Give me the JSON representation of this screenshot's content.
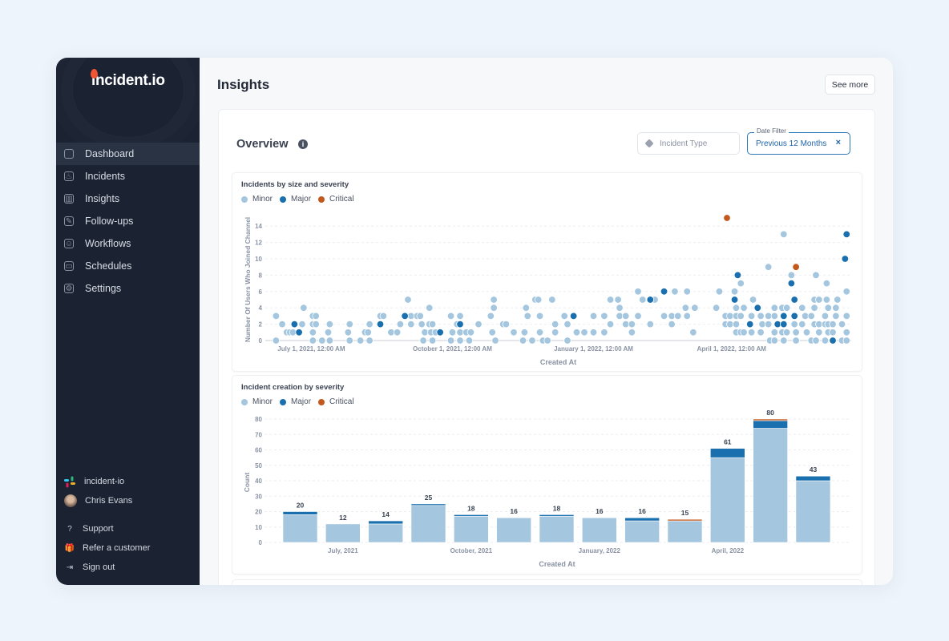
{
  "sidebar": {
    "logo": "incident.io",
    "items": [
      {
        "label": "Dashboard",
        "icon": "dashboard-icon",
        "glyph": "",
        "active": true
      },
      {
        "label": "Incidents",
        "icon": "flame-icon",
        "glyph": "♨"
      },
      {
        "label": "Insights",
        "icon": "chart-icon",
        "glyph": "▥"
      },
      {
        "label": "Follow-ups",
        "icon": "pencil-icon",
        "glyph": "✎"
      },
      {
        "label": "Workflows",
        "icon": "robot-icon",
        "glyph": "☺"
      },
      {
        "label": "Schedules",
        "icon": "calendar-icon",
        "glyph": "▭"
      },
      {
        "label": "Settings",
        "icon": "gear-icon",
        "glyph": "⚙"
      }
    ],
    "workspace": "incident-io",
    "user": "Chris Evans",
    "footer": [
      {
        "label": "Support",
        "icon": "help-circle-icon",
        "glyph": "?"
      },
      {
        "label": "Refer a customer",
        "icon": "gift-icon",
        "glyph": "🎁"
      },
      {
        "label": "Sign out",
        "icon": "sign-out-icon",
        "glyph": "⇥"
      }
    ]
  },
  "header": {
    "title": "Insights",
    "see_more": "See more"
  },
  "overview": {
    "title": "Overview",
    "info_icon": "i",
    "incident_type_placeholder": "Incident Type",
    "date_filter_label": "Date Filter",
    "date_filter_value": "Previous 12 Months",
    "clear": "×"
  },
  "colors": {
    "Minor": "#a4c6df",
    "Major": "#1a6fae",
    "Critical": "#c4581c"
  },
  "chart_data": [
    {
      "type": "scatter",
      "title": "Incidents by size and severity",
      "xlabel": "Created At",
      "ylabel": "Number Of Users Who Joined Channel",
      "ylim": [
        0,
        14
      ],
      "yticks": [
        0,
        2,
        4,
        6,
        8,
        10,
        12,
        14
      ],
      "xlim": [
        "2021-06-01",
        "2022-06-18"
      ],
      "xticks": [
        {
          "date": "2021-07-01",
          "label": "July 1, 2021, 12:00 AM"
        },
        {
          "date": "2021-10-01",
          "label": "October 1, 2021, 12:00 AM"
        },
        {
          "date": "2022-01-01",
          "label": "January 1, 2022, 12:00 AM"
        },
        {
          "date": "2022-04-01",
          "label": "April 1, 2022, 12:00 AM"
        }
      ],
      "grid": true,
      "legend": "top-left",
      "series": [
        {
          "name": "Minor",
          "points": [
            [
              "2021-06-08",
              0
            ],
            [
              "2021-06-08",
              3
            ],
            [
              "2021-06-12",
              2
            ],
            [
              "2021-06-15",
              1
            ],
            [
              "2021-06-17",
              1
            ],
            [
              "2021-06-19",
              1
            ],
            [
              "2021-06-25",
              2
            ],
            [
              "2021-06-26",
              4
            ],
            [
              "2021-07-02",
              2
            ],
            [
              "2021-07-02",
              3
            ],
            [
              "2021-07-02",
              1
            ],
            [
              "2021-07-02",
              0
            ],
            [
              "2021-07-04",
              2
            ],
            [
              "2021-07-04",
              3
            ],
            [
              "2021-07-08",
              0
            ],
            [
              "2021-07-12",
              1
            ],
            [
              "2021-07-13",
              2
            ],
            [
              "2021-07-13",
              0
            ],
            [
              "2021-07-25",
              1
            ],
            [
              "2021-07-26",
              2
            ],
            [
              "2021-07-26",
              0
            ],
            [
              "2021-08-02",
              0
            ],
            [
              "2021-08-05",
              1
            ],
            [
              "2021-08-07",
              1
            ],
            [
              "2021-08-08",
              2
            ],
            [
              "2021-08-08",
              0
            ],
            [
              "2021-08-15",
              3
            ],
            [
              "2021-08-17",
              3
            ],
            [
              "2021-08-22",
              1
            ],
            [
              "2021-08-26",
              1
            ],
            [
              "2021-08-28",
              2
            ],
            [
              "2021-09-02",
              5
            ],
            [
              "2021-09-04",
              3
            ],
            [
              "2021-09-04",
              2
            ],
            [
              "2021-09-08",
              3
            ],
            [
              "2021-09-10",
              3
            ],
            [
              "2021-09-11",
              2
            ],
            [
              "2021-09-12",
              0
            ],
            [
              "2021-09-13",
              1
            ],
            [
              "2021-09-16",
              4
            ],
            [
              "2021-09-16",
              2
            ],
            [
              "2021-09-17",
              1
            ],
            [
              "2021-09-18",
              2
            ],
            [
              "2021-09-18",
              0
            ],
            [
              "2021-09-20",
              1
            ],
            [
              "2021-09-30",
              0
            ],
            [
              "2021-09-30",
              3
            ],
            [
              "2021-10-01",
              1
            ],
            [
              "2021-10-04",
              2
            ],
            [
              "2021-10-06",
              0
            ],
            [
              "2021-10-06",
              1
            ],
            [
              "2021-10-06",
              3
            ],
            [
              "2021-10-10",
              1
            ],
            [
              "2021-10-12",
              0
            ],
            [
              "2021-10-13",
              1
            ],
            [
              "2021-10-18",
              2
            ],
            [
              "2021-10-26",
              3
            ],
            [
              "2021-10-27",
              1
            ],
            [
              "2021-10-28",
              4
            ],
            [
              "2021-10-28",
              5
            ],
            [
              "2021-10-29",
              0
            ],
            [
              "2021-11-03",
              2
            ],
            [
              "2021-11-05",
              2
            ],
            [
              "2021-11-10",
              1
            ],
            [
              "2021-11-16",
              0
            ],
            [
              "2021-11-17",
              1
            ],
            [
              "2021-11-18",
              4
            ],
            [
              "2021-11-19",
              3
            ],
            [
              "2021-11-22",
              0
            ],
            [
              "2021-11-24",
              5
            ],
            [
              "2021-11-26",
              5
            ],
            [
              "2021-11-27",
              3
            ],
            [
              "2021-11-27",
              1
            ],
            [
              "2021-11-29",
              0
            ],
            [
              "2021-12-02",
              0
            ],
            [
              "2021-12-05",
              5
            ],
            [
              "2021-12-07",
              2
            ],
            [
              "2021-12-07",
              1
            ],
            [
              "2021-12-13",
              3
            ],
            [
              "2021-12-15",
              2
            ],
            [
              "2021-12-15",
              0
            ],
            [
              "2021-12-21",
              1
            ],
            [
              "2021-12-26",
              1
            ],
            [
              "2022-01-01",
              1
            ],
            [
              "2022-01-01",
              3
            ],
            [
              "2022-01-08",
              3
            ],
            [
              "2022-01-08",
              1
            ],
            [
              "2022-01-12",
              2
            ],
            [
              "2022-01-12",
              5
            ],
            [
              "2022-01-17",
              5
            ],
            [
              "2022-01-18",
              4
            ],
            [
              "2022-01-18",
              3
            ],
            [
              "2022-01-22",
              3
            ],
            [
              "2022-01-22",
              2
            ],
            [
              "2022-01-26",
              1
            ],
            [
              "2022-01-26",
              2
            ],
            [
              "2022-01-30",
              6
            ],
            [
              "2022-01-30",
              3
            ],
            [
              "2022-02-02",
              5
            ],
            [
              "2022-02-07",
              2
            ],
            [
              "2022-02-10",
              5
            ],
            [
              "2022-02-16",
              3
            ],
            [
              "2022-02-21",
              3
            ],
            [
              "2022-02-21",
              2
            ],
            [
              "2022-02-23",
              6
            ],
            [
              "2022-02-25",
              3
            ],
            [
              "2022-03-02",
              4
            ],
            [
              "2022-03-03",
              6
            ],
            [
              "2022-03-03",
              3
            ],
            [
              "2022-03-07",
              1
            ],
            [
              "2022-03-08",
              4
            ],
            [
              "2022-03-22",
              4
            ],
            [
              "2022-03-24",
              6
            ],
            [
              "2022-03-28",
              3
            ],
            [
              "2022-03-28",
              2
            ],
            [
              "2022-03-31",
              3
            ],
            [
              "2022-03-31",
              2
            ],
            [
              "2022-04-03",
              6
            ],
            [
              "2022-04-04",
              4
            ],
            [
              "2022-04-04",
              3
            ],
            [
              "2022-04-04",
              2
            ],
            [
              "2022-04-04",
              1
            ],
            [
              "2022-04-07",
              7
            ],
            [
              "2022-04-07",
              3
            ],
            [
              "2022-04-07",
              1
            ],
            [
              "2022-04-09",
              4
            ],
            [
              "2022-04-09",
              1
            ],
            [
              "2022-04-14",
              3
            ],
            [
              "2022-04-14",
              1
            ],
            [
              "2022-04-15",
              5
            ],
            [
              "2022-04-20",
              3
            ],
            [
              "2022-04-20",
              1
            ],
            [
              "2022-04-21",
              2
            ],
            [
              "2022-04-25",
              9
            ],
            [
              "2022-04-25",
              3
            ],
            [
              "2022-04-25",
              2
            ],
            [
              "2022-04-26",
              0
            ],
            [
              "2022-04-29",
              4
            ],
            [
              "2022-04-29",
              3
            ],
            [
              "2022-04-29",
              1
            ],
            [
              "2022-04-29",
              0
            ],
            [
              "2022-05-04",
              4
            ],
            [
              "2022-05-04",
              1
            ],
            [
              "2022-05-05",
              13
            ],
            [
              "2022-05-05",
              0
            ],
            [
              "2022-05-07",
              4
            ],
            [
              "2022-05-07",
              1
            ],
            [
              "2022-05-10",
              8
            ],
            [
              "2022-05-12",
              2
            ],
            [
              "2022-05-13",
              1
            ],
            [
              "2022-05-13",
              0
            ],
            [
              "2022-05-17",
              4
            ],
            [
              "2022-05-17",
              2
            ],
            [
              "2022-05-19",
              3
            ],
            [
              "2022-05-20",
              1
            ],
            [
              "2022-05-23",
              3
            ],
            [
              "2022-05-23",
              0
            ],
            [
              "2022-05-25",
              5
            ],
            [
              "2022-05-25",
              4
            ],
            [
              "2022-05-25",
              2
            ],
            [
              "2022-05-26",
              8
            ],
            [
              "2022-05-26",
              0
            ],
            [
              "2022-05-28",
              5
            ],
            [
              "2022-05-28",
              2
            ],
            [
              "2022-05-28",
              1
            ],
            [
              "2022-06-01",
              3
            ],
            [
              "2022-06-01",
              2
            ],
            [
              "2022-06-01",
              0
            ],
            [
              "2022-06-02",
              7
            ],
            [
              "2022-06-02",
              5
            ],
            [
              "2022-06-03",
              4
            ],
            [
              "2022-06-03",
              2
            ],
            [
              "2022-06-03",
              1
            ],
            [
              "2022-06-06",
              2
            ],
            [
              "2022-06-06",
              1
            ],
            [
              "2022-06-08",
              3
            ],
            [
              "2022-06-08",
              4
            ],
            [
              "2022-06-09",
              5
            ],
            [
              "2022-06-12",
              0
            ],
            [
              "2022-06-12",
              2
            ],
            [
              "2022-06-15",
              6
            ],
            [
              "2022-06-15",
              3
            ],
            [
              "2022-06-15",
              1
            ],
            [
              "2022-06-15",
              0
            ]
          ]
        },
        {
          "name": "Major",
          "points": [
            [
              "2021-06-20",
              2
            ],
            [
              "2021-06-23",
              1
            ],
            [
              "2021-08-15",
              2
            ],
            [
              "2021-08-31",
              3
            ],
            [
              "2021-09-23",
              1
            ],
            [
              "2021-10-06",
              2
            ],
            [
              "2021-12-19",
              3
            ],
            [
              "2022-02-07",
              5
            ],
            [
              "2022-02-16",
              6
            ],
            [
              "2022-04-03",
              5
            ],
            [
              "2022-04-05",
              8
            ],
            [
              "2022-04-13",
              2
            ],
            [
              "2022-04-18",
              4
            ],
            [
              "2022-05-01",
              2
            ],
            [
              "2022-05-05",
              3
            ],
            [
              "2022-05-05",
              2
            ],
            [
              "2022-05-10",
              7
            ],
            [
              "2022-05-12",
              5
            ],
            [
              "2022-05-12",
              3
            ],
            [
              "2022-06-06",
              0
            ],
            [
              "2022-06-14",
              10
            ],
            [
              "2022-06-15",
              13
            ]
          ]
        },
        {
          "name": "Critical",
          "points": [
            [
              "2022-03-29",
              15
            ],
            [
              "2022-05-13",
              9
            ]
          ]
        }
      ]
    },
    {
      "type": "bar",
      "stacked": true,
      "title": "Incident creation by severity",
      "xlabel": "Created At",
      "ylabel": "Count",
      "ylim": [
        0,
        80
      ],
      "yticks": [
        0,
        10,
        20,
        30,
        40,
        50,
        60,
        70,
        80
      ],
      "grid": true,
      "legend": "top-left",
      "categories": [
        "June, 2021",
        "July, 2021",
        "August, 2021",
        "September, 2021",
        "October, 2021",
        "November, 2021",
        "December, 2021",
        "January, 2022",
        "February, 2022",
        "March, 2022",
        "April, 2022",
        "May, 2022",
        "June, 2022"
      ],
      "tick_labels": [
        null,
        "July, 2021",
        null,
        null,
        "October, 2021",
        null,
        null,
        "January, 2022",
        null,
        null,
        "April, 2022",
        null,
        null
      ],
      "totals": [
        20,
        12,
        14,
        25,
        18,
        16,
        18,
        16,
        16,
        15,
        61,
        80,
        43
      ],
      "series": [
        {
          "name": "Minor",
          "values": [
            18,
            12,
            12,
            24,
            17,
            16,
            17,
            16,
            14,
            14,
            55,
            74,
            40
          ]
        },
        {
          "name": "Major",
          "values": [
            2,
            0,
            2,
            1,
            1,
            0,
            1,
            0,
            2,
            0,
            6,
            5,
            3
          ]
        },
        {
          "name": "Critical",
          "values": [
            0,
            0,
            0,
            0,
            0,
            0,
            0,
            0,
            0,
            1,
            0,
            1,
            0
          ]
        }
      ]
    }
  ]
}
